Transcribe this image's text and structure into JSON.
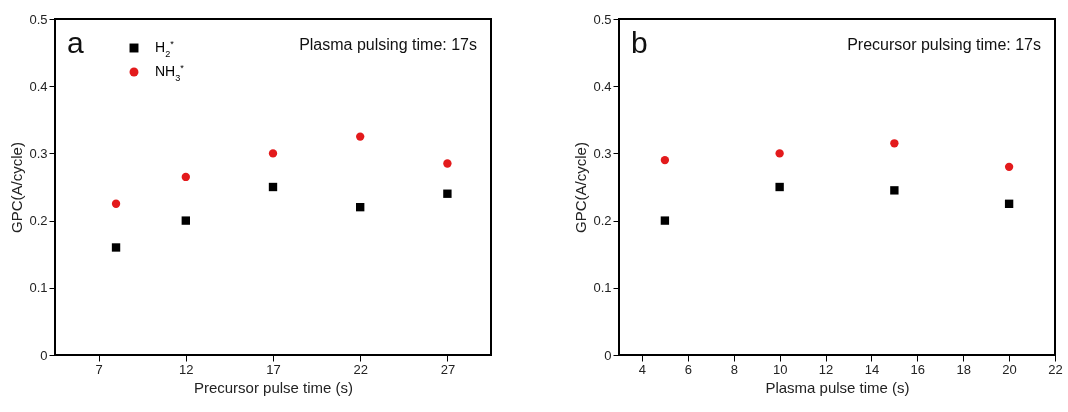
{
  "chart_data": [
    {
      "type": "scatter",
      "annotations": [
        "a",
        "Plasma pulsing time: 17s"
      ],
      "xlabel": "Precursor pulse time (s)",
      "ylabel": "GPC(A/cycle)",
      "x": [
        8,
        12,
        17,
        22,
        27
      ],
      "xlim": [
        4.5,
        29.5
      ],
      "xticks": [
        7,
        12,
        17,
        22,
        27
      ],
      "ylim": [
        0,
        0.5
      ],
      "yticks": [
        0,
        {
          "value": 0.1,
          "label": "0.1"
        },
        {
          "value": 0.2,
          "label": "0.2"
        },
        {
          "value": 0.3,
          "label": "0.3"
        },
        {
          "value": 0.4,
          "label": "0.4"
        },
        {
          "value": 0.5,
          "label": "0.5"
        }
      ],
      "legend": "top left",
      "grid": false,
      "series": [
        {
          "name": "H$_{2}$$^{*}$",
          "color": "#000000",
          "marker": "square",
          "values": [
            0.16,
            0.2,
            0.25,
            0.22,
            0.24
          ]
        },
        {
          "name": "NH$_{3}$$^{*}$",
          "color": "#e31a1c",
          "marker": "circle",
          "values": [
            0.225,
            0.265,
            0.3,
            0.325,
            0.285
          ]
        }
      ]
    },
    {
      "type": "scatter",
      "annotations": [
        "b",
        "Precursor pulsing time: 17s"
      ],
      "xlabel": "Plasma pulse time (s)",
      "ylabel": "GPC(A/cycle)",
      "x": [
        5,
        10,
        15,
        20
      ],
      "xlim": [
        3,
        22
      ],
      "xticks": [
        4,
        6,
        8,
        10,
        12,
        14,
        16,
        18,
        20,
        22
      ],
      "ylim": [
        0,
        0.5
      ],
      "yticks": [
        0,
        {
          "value": 0.1,
          "label": "0.1"
        },
        {
          "value": 0.2,
          "label": "0.2"
        },
        {
          "value": 0.3,
          "label": "0.3"
        },
        {
          "value": 0.4,
          "label": "0.4"
        },
        {
          "value": 0.5,
          "label": "0.5"
        }
      ],
      "legend": "top left",
      "grid": false,
      "series": [
        {
          "name": "H$_{2}$$^{*}$",
          "color": "#000000",
          "marker": "square",
          "values": [
            0.2,
            0.25,
            0.245,
            0.225
          ]
        },
        {
          "name": "NH$_{3}$$^{*}$",
          "color": "#e31a1c",
          "marker": "circle",
          "values": [
            0.29,
            0.3,
            0.315,
            0.28
          ]
        }
      ]
    }
  ]
}
